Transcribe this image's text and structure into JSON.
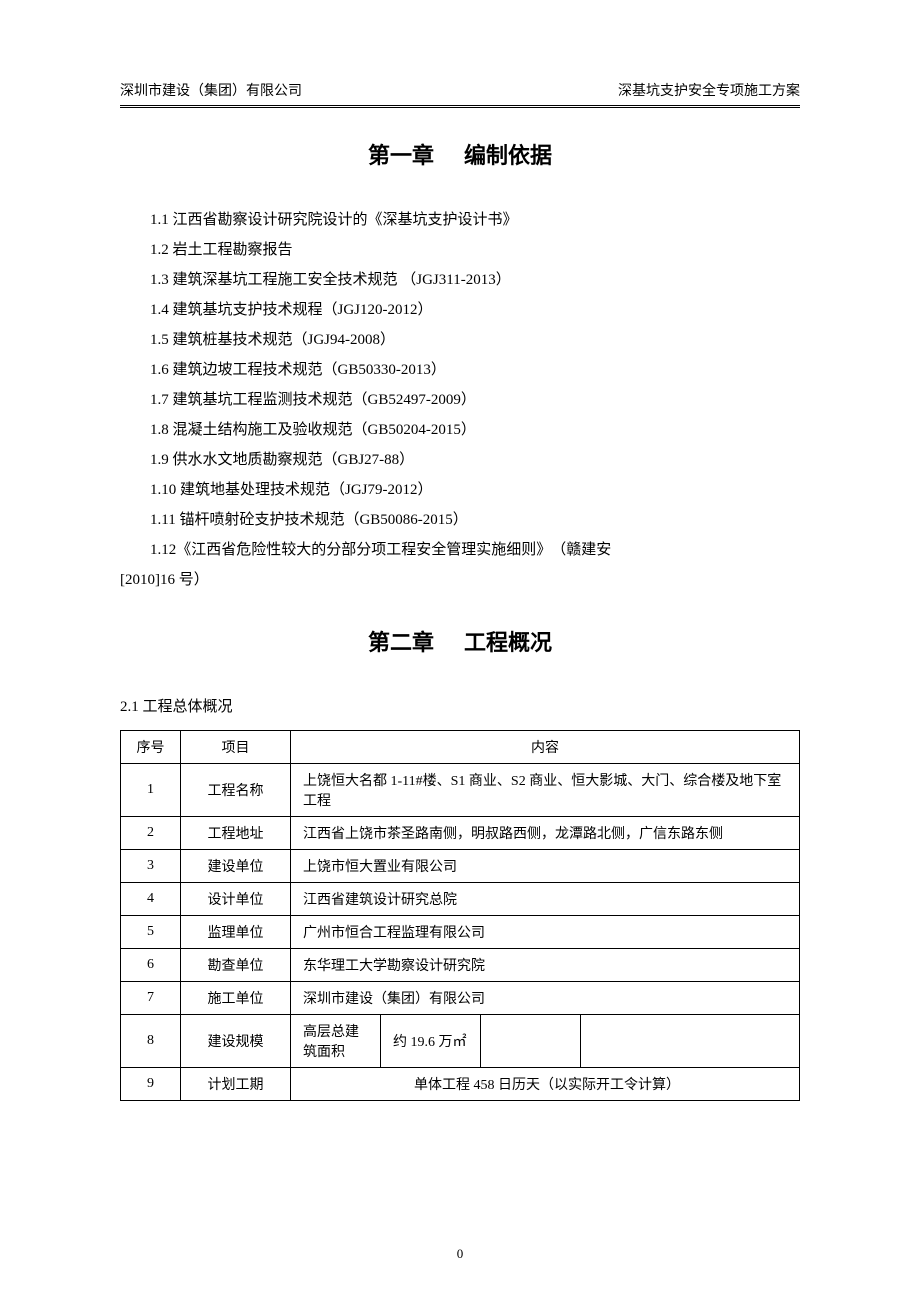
{
  "header": {
    "left": "深圳市建设（集团）有限公司",
    "right": "深基坑支护安全专项施工方案"
  },
  "chapter1": {
    "title_prefix": "第一章",
    "title_suffix": "编制依据",
    "items": [
      "1.1 江西省勘察设计研究院设计的《深基坑支护设计书》",
      "1.2 岩土工程勘察报告",
      "1.3 建筑深基坑工程施工安全技术规范 （JGJ311-2013）",
      "1.4 建筑基坑支护技术规程（JGJ120-2012）",
      "1.5 建筑桩基技术规范（JGJ94-2008）",
      "1.6 建筑边坡工程技术规范（GB50330-2013）",
      "1.7 建筑基坑工程监测技术规范（GB52497-2009）",
      "1.8 混凝土结构施工及验收规范（GB50204-2015）",
      "1.9 供水水文地质勘察规范（GBJ27-88）",
      "1.10 建筑地基处理技术规范（JGJ79-2012）",
      "1.11 锚杆喷射砼支护技术规范（GB50086-2015）"
    ],
    "last_item_line1": "1.12《江西省危险性较大的分部分项工程安全管理实施细则》　（赣建安",
    "last_item_line2": "[2010]16 号）"
  },
  "chapter2": {
    "title_prefix": "第二章",
    "title_suffix": "工程概况",
    "section_title": "2.1 工程总体概况",
    "table": {
      "headers": {
        "seq": "序号",
        "item": "项目",
        "content": "内容"
      },
      "rows": [
        {
          "seq": "1",
          "item": "工程名称",
          "content": "上饶恒大名都 1-11#楼、S1 商业、S2 商业、恒大影城、大门、综合楼及地下室工程"
        },
        {
          "seq": "2",
          "item": "工程地址",
          "content": "江西省上饶市茶圣路南侧，明叔路西侧，龙潭路北侧，广信东路东侧"
        },
        {
          "seq": "3",
          "item": "建设单位",
          "content": "上饶市恒大置业有限公司"
        },
        {
          "seq": "4",
          "item": "设计单位",
          "content": "江西省建筑设计研究总院"
        },
        {
          "seq": "5",
          "item": "监理单位",
          "content": "广州市恒合工程监理有限公司"
        },
        {
          "seq": "6",
          "item": "勘查单位",
          "content": "东华理工大学勘察设计研究院"
        },
        {
          "seq": "7",
          "item": "施工单位",
          "content": "深圳市建设（集团）有限公司"
        }
      ],
      "row8": {
        "seq": "8",
        "item": "建设规模",
        "sub1": "高层总建筑面积",
        "sub2": "约 19.6 万㎡",
        "sub3": "",
        "sub4": ""
      },
      "row9": {
        "seq": "9",
        "item": "计划工期",
        "content": "单体工程 458 日历天（以实际开工令计算）"
      }
    }
  },
  "page_number": "0"
}
